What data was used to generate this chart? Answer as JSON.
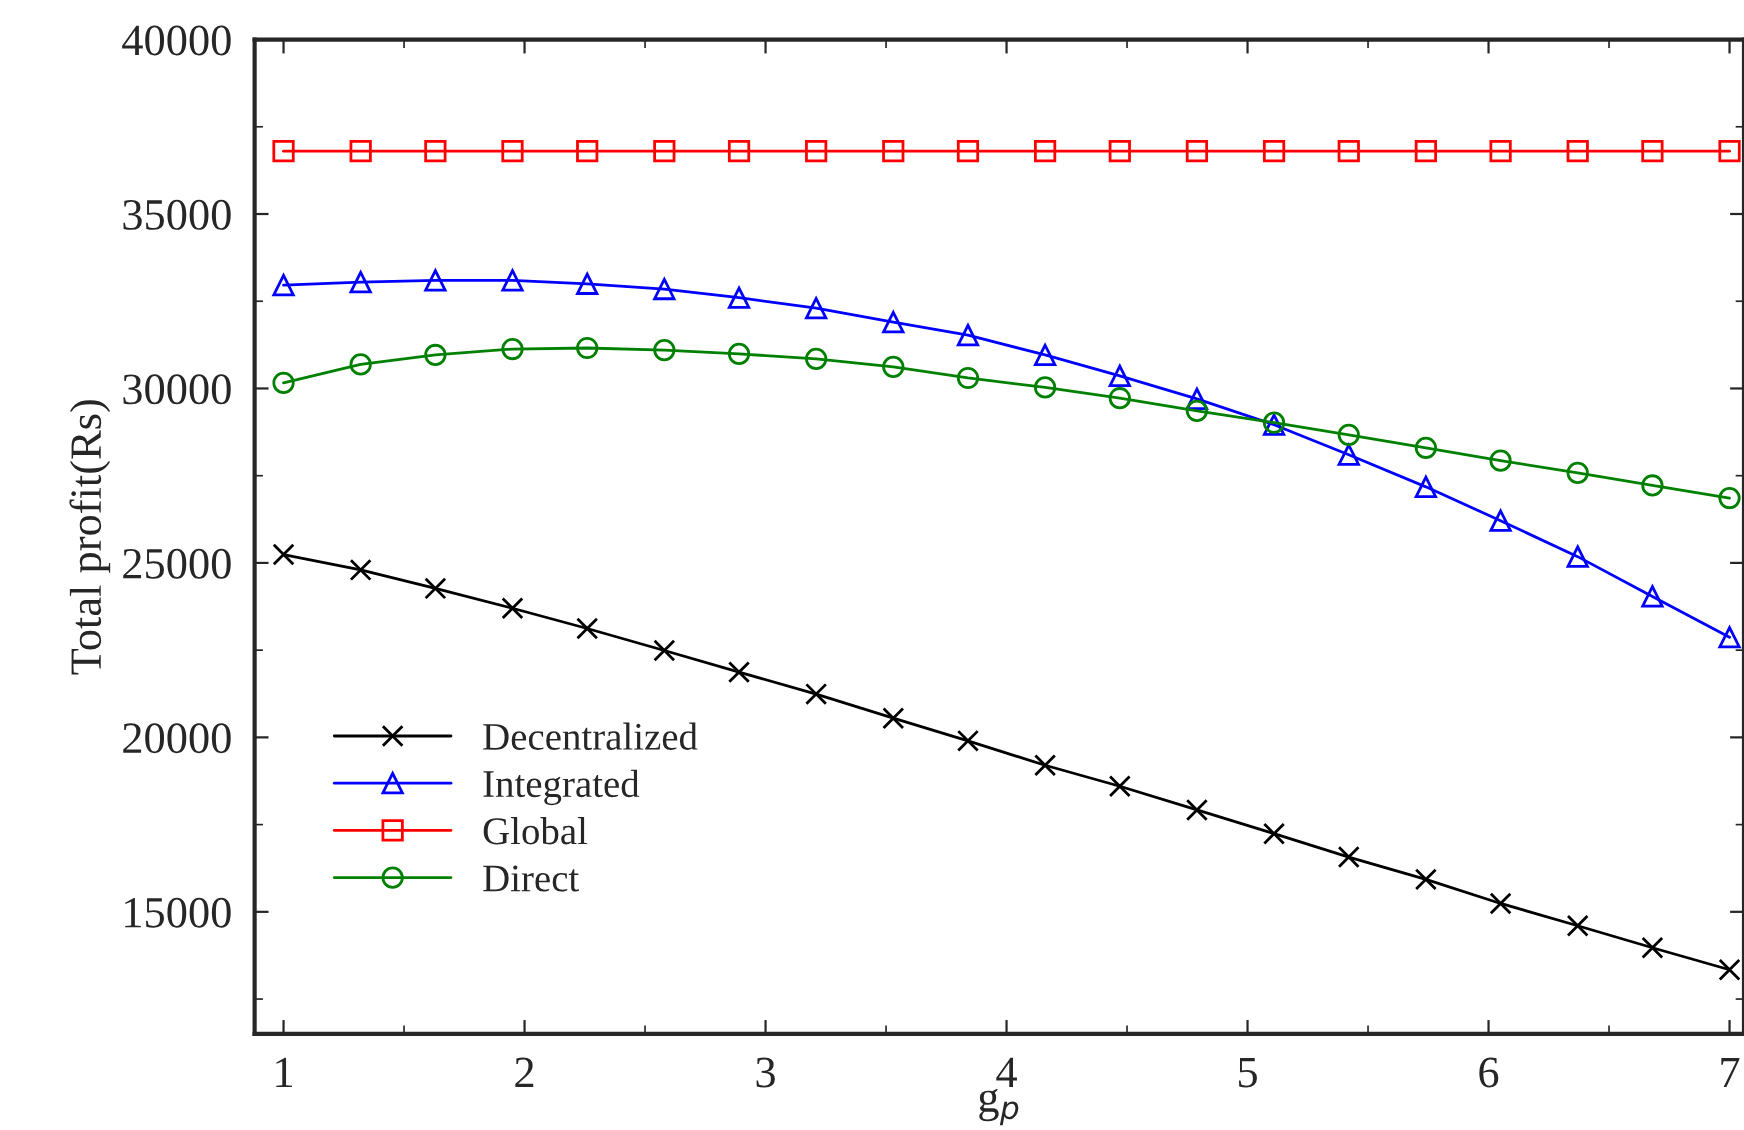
{
  "chart_data": {
    "type": "line",
    "xlabel": "g$_{p}$",
    "ylabel": "Total profit(Rs)",
    "x": [
      1,
      1.32,
      1.63,
      1.95,
      2.26,
      2.58,
      2.89,
      3.21,
      3.53,
      3.84,
      4.16,
      4.47,
      4.79,
      5.11,
      5.42,
      5.74,
      6.05,
      6.37,
      6.68,
      7
    ],
    "series": [
      {
        "name": "Decentralized",
        "color": "#000000",
        "marker": "cross",
        "values": [
          25240,
          24800,
          24270,
          23700,
          23120,
          22490,
          21870,
          21240,
          20550,
          19900,
          19200,
          18600,
          17920,
          17240,
          16570,
          15930,
          15240,
          14600,
          13970,
          13340
        ]
      },
      {
        "name": "Integrated",
        "color": "#0000ff",
        "marker": "triangle",
        "values": [
          32960,
          33050,
          33100,
          33100,
          33000,
          32850,
          32600,
          32300,
          31900,
          31530,
          30960,
          30360,
          29700,
          28960,
          28100,
          27180,
          26210,
          25180,
          24040,
          22870
        ]
      },
      {
        "name": "Global",
        "color": "#ff0000",
        "marker": "square",
        "values": [
          36800,
          36800,
          36800,
          36800,
          36800,
          36800,
          36800,
          36800,
          36800,
          36800,
          36800,
          36800,
          36800,
          36800,
          36800,
          36800,
          36800,
          36800,
          36800,
          36800
        ]
      },
      {
        "name": "Direct",
        "color": "#008000",
        "marker": "circle",
        "values": [
          30160,
          30690,
          30960,
          31130,
          31160,
          31100,
          30990,
          30850,
          30620,
          30300,
          30030,
          29720,
          29360,
          29020,
          28670,
          28300,
          27930,
          27580,
          27220,
          26860
        ]
      }
    ],
    "xlim": [
      0.88,
      7.06
    ],
    "ylim": [
      11500,
      40000
    ],
    "xticks": [
      1,
      2,
      3,
      4,
      5,
      6,
      7
    ],
    "yticks": [
      15000,
      20000,
      25000,
      30000,
      35000,
      40000
    ],
    "grid": false,
    "legend": "lower left",
    "line_style": "solid"
  }
}
